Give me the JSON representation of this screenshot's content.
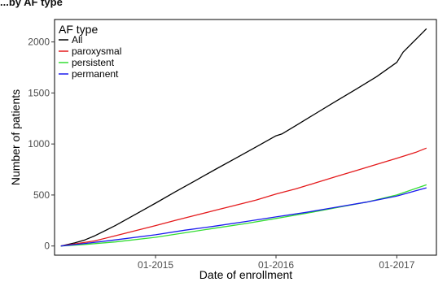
{
  "header": {
    "partial_title": "...by AF type"
  },
  "chart_data": {
    "type": "line",
    "title": "",
    "xlabel": "Date of enrollment",
    "ylabel": "Number of patients",
    "xlim": [
      "2014-03-01",
      "2017-05-01"
    ],
    "ylim": [
      -90,
      2220
    ],
    "x_ticks": [
      {
        "date": "2015-01-01",
        "label": "01-2015"
      },
      {
        "date": "2016-01-01",
        "label": "01-2016"
      },
      {
        "date": "2017-01-01",
        "label": "01-2017"
      }
    ],
    "y_ticks": [
      0,
      500,
      1000,
      1500,
      2000
    ],
    "grid": false,
    "legend": {
      "title": "AF type",
      "position": "top-left"
    },
    "series": [
      {
        "name": "All",
        "color": "#000000",
        "x": [
          "2014-03-20",
          "2014-05-01",
          "2014-06-01",
          "2014-07-01",
          "2014-09-01",
          "2014-11-01",
          "2015-01-01",
          "2015-03-01",
          "2015-05-01",
          "2015-07-01",
          "2015-09-01",
          "2015-11-01",
          "2016-01-01",
          "2016-01-20",
          "2016-03-01",
          "2016-05-01",
          "2016-07-01",
          "2016-09-01",
          "2016-11-01",
          "2017-01-01",
          "2017-01-20",
          "2017-03-01",
          "2017-04-01"
        ],
        "y": [
          0,
          30,
          60,
          100,
          200,
          310,
          420,
          530,
          640,
          750,
          860,
          970,
          1080,
          1100,
          1180,
          1300,
          1420,
          1540,
          1660,
          1800,
          1900,
          2030,
          2130
        ]
      },
      {
        "name": "paroxysmal",
        "color": "#e41a1c",
        "x": [
          "2014-03-20",
          "2014-05-01",
          "2014-07-01",
          "2014-09-01",
          "2014-11-01",
          "2015-01-01",
          "2015-03-01",
          "2015-05-01",
          "2015-07-01",
          "2015-09-01",
          "2015-11-01",
          "2016-01-01",
          "2016-03-01",
          "2016-05-01",
          "2016-07-01",
          "2016-09-01",
          "2016-11-01",
          "2017-01-01",
          "2017-03-01",
          "2017-04-01"
        ],
        "y": [
          0,
          20,
          50,
          100,
          150,
          200,
          250,
          300,
          350,
          400,
          450,
          510,
          560,
          620,
          680,
          740,
          800,
          860,
          920,
          960
        ]
      },
      {
        "name": "persistent",
        "color": "#33dd33",
        "x": [
          "2014-03-20",
          "2014-06-01",
          "2014-09-01",
          "2015-01-01",
          "2015-04-01",
          "2015-07-01",
          "2015-10-01",
          "2016-01-01",
          "2016-04-01",
          "2016-07-01",
          "2016-10-01",
          "2017-01-01",
          "2017-04-01"
        ],
        "y": [
          0,
          15,
          40,
          85,
          130,
          175,
          220,
          270,
          320,
          375,
          430,
          500,
          600
        ]
      },
      {
        "name": "permanent",
        "color": "#1a1aee",
        "x": [
          "2014-03-20",
          "2014-06-01",
          "2014-09-01",
          "2015-01-01",
          "2015-04-01",
          "2015-07-01",
          "2015-10-01",
          "2016-01-01",
          "2016-04-01",
          "2016-07-01",
          "2016-10-01",
          "2017-01-01",
          "2017-04-01"
        ],
        "y": [
          0,
          25,
          60,
          110,
          155,
          195,
          240,
          285,
          330,
          380,
          430,
          490,
          570
        ]
      }
    ]
  }
}
